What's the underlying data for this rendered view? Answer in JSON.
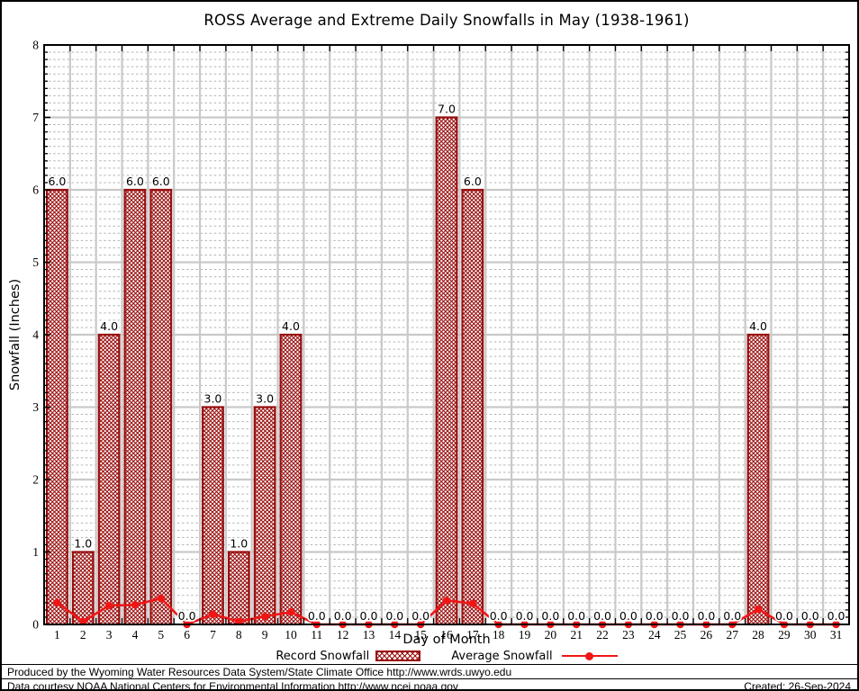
{
  "chart": {
    "title": "ROSS Average and Extreme Daily Snowfalls in May (1938-1961)",
    "xlabel": "Day of Month",
    "ylabel": "Snowfall (Inches)"
  },
  "legend": {
    "record_label": "Record Snowfall",
    "average_label": "Average Snowfall"
  },
  "footer": {
    "line1": "Produced by the Wyoming Water Resources Data System/State Climate Office http://www.wrds.uwyo.edu",
    "line2": "Data courtesy NOAA National Centers for Environmental Information http://www.ncei.noaa.gov",
    "created": "Created: 26-Sep-2024"
  },
  "colors": {
    "bar": "#990f0f",
    "line": "#f01616",
    "grid_major": "#c9c9c9",
    "grid_minor": "#b3b3b3",
    "axis": "#000000"
  },
  "chart_data": {
    "type": "bar",
    "title": "ROSS Average and Extreme Daily Snowfalls in May (1938-1961)",
    "xlabel": "Day of Month",
    "ylabel": "Snowfall (Inches)",
    "categories": [
      1,
      2,
      3,
      4,
      5,
      6,
      7,
      8,
      9,
      10,
      11,
      12,
      13,
      14,
      15,
      16,
      17,
      18,
      19,
      20,
      21,
      22,
      23,
      24,
      25,
      26,
      27,
      28,
      29,
      30,
      31
    ],
    "series": [
      {
        "name": "Record Snowfall",
        "type": "bar",
        "values": [
          6.0,
          1.0,
          4.0,
          6.0,
          6.0,
          0.0,
          3.0,
          1.0,
          3.0,
          4.0,
          0.0,
          0.0,
          0.0,
          0.0,
          0.0,
          7.0,
          6.0,
          0.0,
          0.0,
          0.0,
          0.0,
          0.0,
          0.0,
          0.0,
          0.0,
          0.0,
          0.0,
          4.0,
          0.0,
          0.0,
          0.0
        ]
      },
      {
        "name": "Average Snowfall",
        "type": "line",
        "values": [
          0.3,
          0.04,
          0.26,
          0.27,
          0.36,
          0.0,
          0.14,
          0.04,
          0.11,
          0.17,
          0.0,
          0.0,
          0.0,
          0.0,
          0.0,
          0.33,
          0.29,
          0.0,
          0.0,
          0.0,
          0.0,
          0.0,
          0.0,
          0.0,
          0.0,
          0.0,
          0.0,
          0.21,
          0.0,
          0.0,
          0.0
        ]
      }
    ],
    "bar_value_labels": [
      "6.0",
      "1.0",
      "4.0",
      "6.0",
      "6.0",
      "0.0",
      "3.0",
      "1.0",
      "3.0",
      "4.0",
      "0.0",
      "0.0",
      "0.0",
      "0.0",
      "0.0",
      "7.0",
      "6.0",
      "0.0",
      "0.0",
      "0.0",
      "0.0",
      "0.0",
      "0.0",
      "0.0",
      "0.0",
      "0.0",
      "0.0",
      "4.0",
      "0.0",
      "0.0",
      "0.0"
    ],
    "ylim": [
      0,
      8
    ],
    "yticks": [
      0,
      1,
      2,
      3,
      4,
      5,
      6,
      7,
      8
    ],
    "grid": true,
    "minor_grid_step": 0.1,
    "legend_position": "bottom"
  }
}
